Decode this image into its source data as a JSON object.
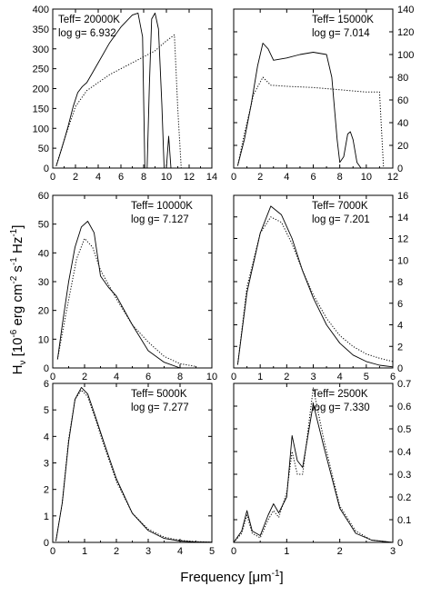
{
  "figure": {
    "ylabel": "H_ν [10^-6 erg cm^-2 s^-1 Hz^-1]",
    "xlabel": "Frequency [μm^-1]"
  },
  "chart_data": [
    {
      "type": "line",
      "panel": "top-left",
      "annotations": [
        "Teff= 20000K",
        "log g= 6.932"
      ],
      "xlim": [
        0,
        14
      ],
      "ylim": [
        0,
        400
      ],
      "xticks": [
        0,
        2,
        4,
        6,
        8,
        10,
        12,
        14
      ],
      "yticks": [
        0,
        50,
        100,
        150,
        200,
        250,
        300,
        350,
        400
      ],
      "y_axis_side": "left",
      "series": [
        {
          "style": "solid",
          "x": [
            0.3,
            0.8,
            1.3,
            1.8,
            2.2,
            2.6,
            3.0,
            4.0,
            5.0,
            6.0,
            7.0,
            7.5,
            7.9,
            8.1,
            8.3,
            8.5,
            8.7,
            9.0,
            9.3,
            9.6,
            9.8,
            10.0,
            10.2,
            10.4,
            10.6,
            10.8
          ],
          "y": [
            5,
            50,
            100,
            155,
            190,
            205,
            215,
            265,
            315,
            355,
            385,
            390,
            330,
            0,
            0,
            210,
            375,
            390,
            350,
            160,
            0,
            0,
            80,
            0,
            0,
            0
          ]
        },
        {
          "style": "dotted",
          "x": [
            0.3,
            1.0,
            2.0,
            3.0,
            4.0,
            5.0,
            6.0,
            7.0,
            8.0,
            9.0,
            10.0,
            10.7,
            11.0,
            11.3
          ],
          "y": [
            5,
            70,
            155,
            195,
            215,
            235,
            250,
            265,
            280,
            295,
            320,
            335,
            150,
            0
          ]
        }
      ]
    },
    {
      "type": "line",
      "panel": "top-right",
      "annotations": [
        "Teff= 15000K",
        "log g= 7.014"
      ],
      "xlim": [
        0,
        12
      ],
      "ylim": [
        0,
        140
      ],
      "xticks": [
        0,
        2,
        4,
        6,
        8,
        10,
        12
      ],
      "yticks": [
        0,
        20,
        40,
        60,
        80,
        100,
        120,
        140
      ],
      "y_axis_side": "right",
      "series": [
        {
          "style": "solid",
          "x": [
            0.3,
            0.8,
            1.3,
            1.8,
            2.2,
            2.6,
            3.0,
            4.0,
            5.0,
            6.0,
            7.0,
            7.4,
            7.8,
            8.0,
            8.3,
            8.6,
            8.8,
            9.0,
            9.3,
            9.6,
            10.0
          ],
          "y": [
            2,
            25,
            55,
            90,
            110,
            105,
            95,
            97,
            100,
            102,
            100,
            80,
            25,
            5,
            10,
            30,
            32,
            25,
            5,
            0,
            0
          ]
        },
        {
          "style": "dotted",
          "x": [
            0.3,
            0.8,
            1.5,
            2.2,
            2.8,
            4.0,
            6.0,
            8.0,
            10.0,
            11.0,
            11.3
          ],
          "y": [
            2,
            30,
            65,
            80,
            73,
            72,
            71,
            69,
            67,
            67,
            0
          ]
        }
      ]
    },
    {
      "type": "line",
      "panel": "middle-left",
      "annotations": [
        "Teff= 10000K",
        "log g= 7.127"
      ],
      "xlim": [
        0,
        10
      ],
      "ylim": [
        0,
        60
      ],
      "xticks": [
        0,
        2,
        4,
        6,
        8,
        10
      ],
      "yticks": [
        0,
        10,
        20,
        30,
        40,
        50,
        60
      ],
      "y_axis_side": "left",
      "series": [
        {
          "style": "solid",
          "x": [
            0.3,
            0.6,
            1.0,
            1.4,
            1.8,
            2.2,
            2.6,
            3.0,
            3.5,
            4.0,
            5.0,
            6.0,
            7.0,
            8.0
          ],
          "y": [
            3,
            15,
            30,
            42,
            49,
            51,
            47,
            32,
            28,
            25,
            15,
            6,
            2,
            0
          ]
        },
        {
          "style": "dotted",
          "x": [
            0.3,
            0.8,
            1.5,
            2.0,
            2.5,
            3.0,
            4.0,
            5.0,
            6.0,
            7.0,
            8.0,
            9.0
          ],
          "y": [
            3,
            18,
            38,
            45,
            42,
            34,
            24,
            15,
            9,
            4,
            1.5,
            0.5
          ]
        }
      ]
    },
    {
      "type": "line",
      "panel": "middle-right",
      "annotations": [
        "Teff= 7000K",
        "log g= 7.201"
      ],
      "xlim": [
        0,
        6
      ],
      "ylim": [
        0,
        16
      ],
      "xticks": [
        0,
        1,
        2,
        3,
        4,
        5,
        6
      ],
      "yticks": [
        0,
        2,
        4,
        6,
        8,
        10,
        12,
        14,
        16
      ],
      "y_axis_side": "right",
      "series": [
        {
          "style": "solid",
          "x": [
            0.15,
            0.5,
            1.0,
            1.4,
            1.8,
            2.2,
            2.6,
            3.0,
            3.5,
            4.0,
            4.5,
            5.0,
            5.5,
            6.0
          ],
          "y": [
            0.3,
            7,
            12.5,
            15,
            14.2,
            12,
            9,
            6.5,
            4,
            2.3,
            1.2,
            0.6,
            0.25,
            0.1
          ]
        },
        {
          "style": "dotted",
          "x": [
            0.15,
            0.5,
            1.0,
            1.4,
            1.8,
            2.2,
            2.6,
            3.0,
            3.5,
            4.0,
            4.5,
            5.0,
            5.5,
            6.0
          ],
          "y": [
            0.3,
            7.5,
            12.5,
            14,
            13.5,
            11.5,
            9,
            6.8,
            4.6,
            3,
            2,
            1.3,
            0.9,
            0.6
          ]
        }
      ]
    },
    {
      "type": "line",
      "panel": "bottom-left",
      "annotations": [
        "Teff= 5000K",
        "log g= 7.277"
      ],
      "xlim": [
        0,
        5
      ],
      "ylim": [
        0,
        6
      ],
      "xticks": [
        0,
        1,
        2,
        3,
        4,
        5
      ],
      "yticks": [
        0,
        1,
        2,
        3,
        4,
        5,
        6
      ],
      "y_axis_side": "left",
      "series": [
        {
          "style": "solid",
          "x": [
            0.1,
            0.3,
            0.5,
            0.7,
            0.9,
            1.1,
            1.3,
            1.6,
            2.0,
            2.5,
            3.0,
            3.5,
            4.0,
            4.5,
            5.0
          ],
          "y": [
            0.05,
            1.5,
            3.8,
            5.4,
            5.85,
            5.6,
            4.9,
            3.8,
            2.4,
            1.1,
            0.45,
            0.15,
            0.05,
            0.02,
            0.01
          ]
        },
        {
          "style": "dotted",
          "x": [
            0.1,
            0.3,
            0.5,
            0.7,
            0.9,
            1.1,
            1.3,
            1.6,
            2.0,
            2.5,
            3.0,
            3.5,
            4.0,
            4.5,
            5.0
          ],
          "y": [
            0.05,
            1.5,
            3.9,
            5.4,
            5.75,
            5.5,
            4.8,
            3.7,
            2.3,
            1.1,
            0.5,
            0.2,
            0.08,
            0.03,
            0.01
          ]
        }
      ]
    },
    {
      "type": "line",
      "panel": "bottom-right",
      "annotations": [
        "Teff= 2500K",
        "log g= 7.330"
      ],
      "xlim": [
        0,
        3
      ],
      "ylim": [
        0,
        0.7
      ],
      "xticks": [
        0,
        1,
        2,
        3
      ],
      "yticks": [
        0,
        0.1,
        0.2,
        0.3,
        0.4,
        0.5,
        0.6,
        0.7
      ],
      "y_axis_side": "right",
      "series": [
        {
          "style": "solid",
          "x": [
            0.0,
            0.15,
            0.25,
            0.35,
            0.5,
            0.65,
            0.75,
            0.85,
            1.0,
            1.1,
            1.2,
            1.3,
            1.5,
            1.7,
            2.0,
            2.3,
            2.6,
            3.0
          ],
          "y": [
            0,
            0.05,
            0.14,
            0.05,
            0.03,
            0.12,
            0.17,
            0.13,
            0.2,
            0.47,
            0.36,
            0.33,
            0.61,
            0.42,
            0.15,
            0.04,
            0.01,
            0.0
          ]
        },
        {
          "style": "dotted",
          "x": [
            0.0,
            0.15,
            0.25,
            0.35,
            0.5,
            0.65,
            0.75,
            0.85,
            1.0,
            1.1,
            1.2,
            1.3,
            1.5,
            1.7,
            2.0,
            2.3,
            2.6,
            3.0
          ],
          "y": [
            0,
            0.04,
            0.12,
            0.04,
            0.02,
            0.1,
            0.14,
            0.11,
            0.22,
            0.4,
            0.3,
            0.3,
            0.68,
            0.45,
            0.16,
            0.05,
            0.01,
            0.0
          ]
        }
      ]
    }
  ]
}
